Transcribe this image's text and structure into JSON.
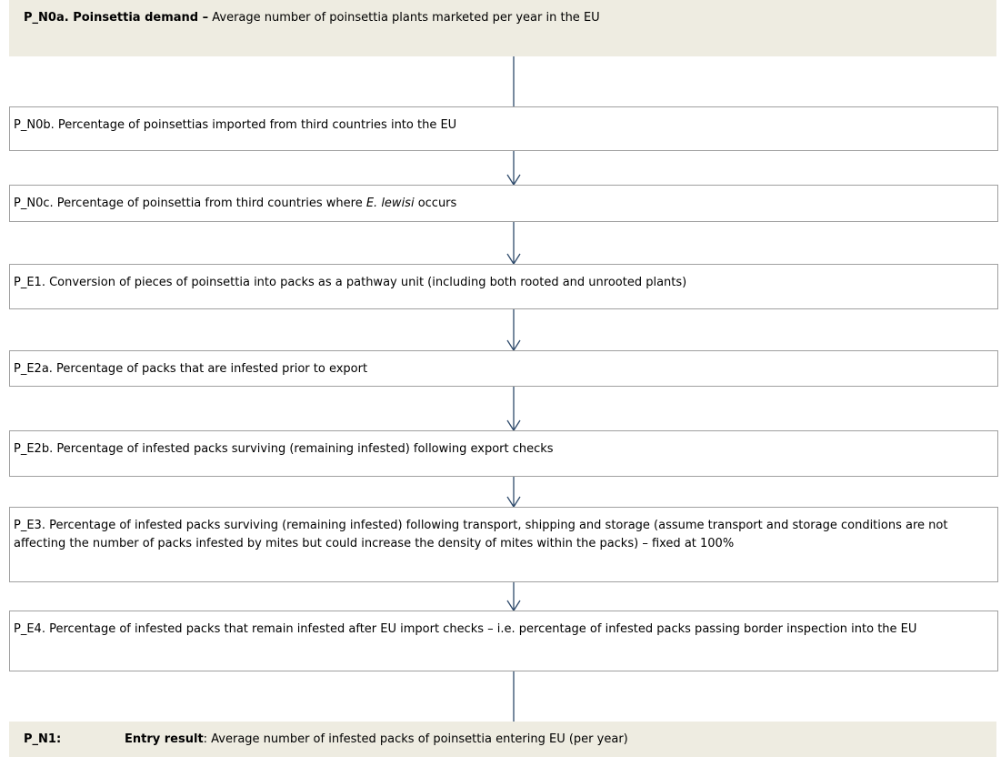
{
  "nodes": [
    {
      "bold": "P_N0a. Poinsettia demand –",
      "text": " Average number of poinsettia plants marketed per year in the EU"
    },
    {
      "text": "P_N0b. Percentage of poinsettias imported from third countries into the EU"
    },
    {
      "text": "P_N0c. Percentage of poinsettia from third countries where ",
      "italic": "E. lewisi",
      "suffix": " occurs"
    },
    {
      "text": "P_E1. Conversion of pieces of poinsettia into packs as a pathway unit (including both rooted and unrooted plants)"
    },
    {
      "text": "P_E2a. Percentage of packs that are infested prior to export"
    },
    {
      "text": "P_E2b. Percentage of infested packs surviving (remaining infested) following export checks"
    },
    {
      "text": "P_E3. Percentage of infested packs surviving (remaining infested) following transport, shipping and storage (assume transport and storage conditions are not affecting the number of packs infested by mites but could increase the density of mites within the packs) – fixed at 100%"
    },
    {
      "text": "P_E4. Percentage of infested packs that remain infested after EU import checks – i.e. percentage of infested packs passing border inspection into the EU"
    },
    {
      "id": "P_N1:",
      "bold": "Entry result",
      "text": ": Average number of infested packs of poinsettia entering EU (per year)"
    }
  ]
}
